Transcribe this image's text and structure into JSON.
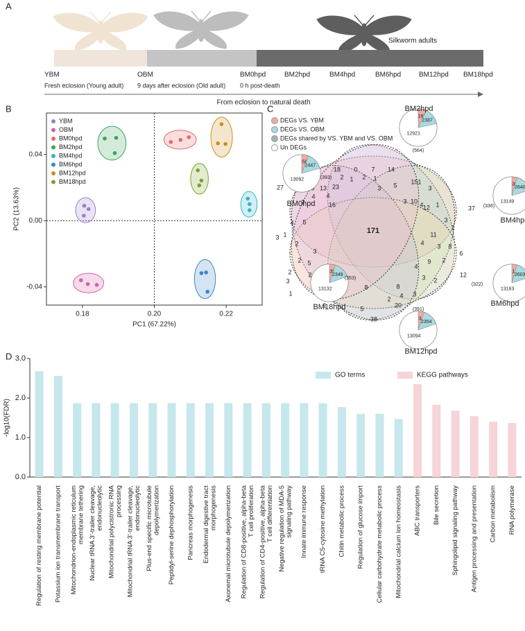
{
  "panel_labels": [
    "A",
    "B",
    "C",
    "D"
  ],
  "timeline": {
    "labels": [
      "YBM",
      "OBM",
      "BM0hpd",
      "BM2hpd",
      "BM4hpd",
      "BM6hpd",
      "BM12hpd",
      "BM18hpd"
    ],
    "notes": [
      "Fresh eclosion (Young adult)",
      "9 days after eclosion (Old adult)",
      "0 h post-death"
    ],
    "adult_label": "Silkworm adults",
    "arrow_label": "From eclosion to natural death"
  },
  "chart_data": [
    {
      "type": "scatter",
      "xlabel": "PC1 (67.22%)",
      "ylabel": "PC2 (13.63%)",
      "xlim": [
        0.17,
        0.23
      ],
      "ylim": [
        -0.051,
        0.065
      ],
      "xticks": [
        0.18,
        {
          "value": 0.2,
          "label": "0.20"
        },
        0.22
      ],
      "yticks": [
        -0.04,
        {
          "value": 0,
          "label": "0.00"
        },
        0.04
      ],
      "ref_lines": {
        "x": 0.2,
        "y": 0
      },
      "legend": "upper left",
      "series": [
        {
          "name": "YBM",
          "color": "#9b7fc8",
          "x": [
            0.1805,
            0.1817,
            0.1804
          ],
          "y": [
            0.009,
            0.007,
            0.003
          ]
        },
        {
          "name": "OBM",
          "color": "#d261a8",
          "x": [
            0.1796,
            0.1815,
            0.184
          ],
          "y": [
            -0.036,
            -0.0383,
            -0.0388
          ]
        },
        {
          "name": "BM0hpd",
          "color": "#e8676b",
          "x": [
            0.2046,
            0.2073,
            0.2096
          ],
          "y": [
            0.0475,
            0.0488,
            0.0504
          ]
        },
        {
          "name": "BM2hpd",
          "color": "#3aa35a",
          "x": [
            0.1862,
            0.1894,
            0.189
          ],
          "y": [
            0.0496,
            0.05,
            0.0408
          ]
        },
        {
          "name": "BM4hpd",
          "color": "#30b5c6",
          "x": [
            0.226,
            0.2265,
            0.2265
          ],
          "y": [
            0.0133,
            0.01,
            0.0063
          ]
        },
        {
          "name": "BM6hpd",
          "color": "#3a86c8",
          "x": [
            0.2131,
            0.2144,
            0.2148
          ],
          "y": [
            -0.0317,
            -0.0313,
            -0.0429
          ]
        },
        {
          "name": "BM12hpd",
          "color": "#c98e1c",
          "x": [
            0.2187,
            0.2177,
            0.2198
          ],
          "y": [
            0.0583,
            0.0467,
            0.0463
          ]
        },
        {
          "name": "BM18hpd",
          "color": "#7aa22e",
          "x": [
            0.2121,
            0.2131,
            0.2125
          ],
          "y": [
            0.0304,
            0.0242,
            0.0213
          ]
        }
      ]
    },
    {
      "type": "bar",
      "ylabel": "-log10(FDR)",
      "ylim": [
        0,
        3
      ],
      "yticks": [
        {
          "value": 0,
          "label": "0.0"
        },
        {
          "value": 1,
          "label": "1.0"
        },
        {
          "value": 2,
          "label": "2.0"
        },
        {
          "value": 3,
          "label": "3.0"
        }
      ],
      "categories": [
        "Regulation of resting membrane potential",
        "Potassium ion transmembrane transport",
        "Mitochondrion-endoplasmic reticulum\nmembrane tethering",
        "Nuclear tRNA 3'-trailer cleavage,\nendonucleolytic",
        "Mitochondrial polycistronic RNA\nprocessing",
        "Mitochondrial tRNA 3'-trailer cleavage,\nendonucleolytic",
        "Plus-end specific microtubule\ndepolymerization",
        "Peptidyl-serine dephosphorylation",
        "Pancreas morphogenesis",
        "Endodermal digestive tract\nmorphogenesis",
        "Axonemal microtubule depolymerization",
        "Regulation of CD8-positive, alpha-beta\nT cell proliferation",
        "Regulation of CD4-positive, alpha-beta\nT cell differentiation",
        "Negative regulation of MDA-5\nsignaling pathway",
        "Innate immune response",
        "tRNA C5-cytosine methylation",
        "Chitin metabolic process",
        "Regulation of glucose import",
        "Cellular carbohydrate metabolic process",
        "Mitochondrial calcium ion homeostasis",
        "ABC transporters",
        "Bile secretion",
        "Sphingolipid signaling pathway",
        "Antigen processing and presentation",
        "Carbon metabolism",
        "RNA polymerase"
      ],
      "series": [
        {
          "name": "GO terms",
          "color": "#c6e7eb",
          "values": [
            2.68,
            2.56,
            1.87,
            1.87,
            1.87,
            1.87,
            1.87,
            1.87,
            1.87,
            1.87,
            1.87,
            1.87,
            1.87,
            1.87,
            1.87,
            1.87,
            1.77,
            1.6,
            1.6,
            1.47,
            null,
            null,
            null,
            null,
            null,
            null
          ]
        },
        {
          "name": "KEGG pathways",
          "color": "#f6d4d7",
          "values": [
            null,
            null,
            null,
            null,
            null,
            null,
            null,
            null,
            null,
            null,
            null,
            null,
            null,
            null,
            null,
            null,
            null,
            null,
            null,
            null,
            2.35,
            1.83,
            1.68,
            1.54,
            1.4,
            1.37
          ]
        }
      ]
    }
  ],
  "venn": {
    "legend": [
      "DEGs VS. YBM",
      "DEGs VS. OBM",
      "DEGs shared by VS. YBM and VS. OBM",
      "Un DEGs"
    ],
    "legend_colors": [
      "#f4aaa4",
      "#a8dadf",
      "#9bb8ad",
      "#ffffff"
    ],
    "pie_colors": [
      "#f4aaa4",
      "#a8dadf",
      "#ffffff"
    ],
    "center": 171,
    "regions": [
      27,
      18,
      0,
      7,
      14,
      151,
      2,
      1,
      2,
      1,
      9,
      13,
      23,
      3,
      5,
      3,
      4,
      4,
      16,
      10,
      3,
      12,
      37,
      2,
      5,
      4,
      1,
      2,
      3,
      3,
      5,
      2,
      2,
      1,
      3,
      2,
      11,
      4,
      3,
      1,
      4,
      1,
      3,
      8,
      6,
      2,
      9,
      4,
      3,
      2,
      12,
      8,
      5,
      7,
      4,
      6,
      1,
      1,
      8,
      20,
      2,
      4,
      3,
      38,
      1,
      3
    ],
    "sets": [
      {
        "name": "BM2hpd",
        "pie": [
          1162,
          2387,
          12921
        ],
        "unique": "(564)"
      },
      {
        "name": "BM4hpd",
        "pie": [
          730,
          2640,
          13149
        ],
        "unique": "(336)"
      },
      {
        "name": "BM6hpd",
        "pie": [
          713,
          2603,
          13163
        ],
        "unique": "(322)"
      },
      {
        "name": "BM12hpd",
        "pie": [
          834,
          2354,
          13094
        ],
        "unique": "(391)"
      },
      {
        "name": "BM18hpd",
        "pie": [
          838,
          2349,
          13132
        ],
        "unique": "(353)"
      },
      {
        "name": "BM0hpd",
        "pie": [
          956,
          2447,
          13092
        ],
        "unique": "(393)"
      }
    ]
  }
}
